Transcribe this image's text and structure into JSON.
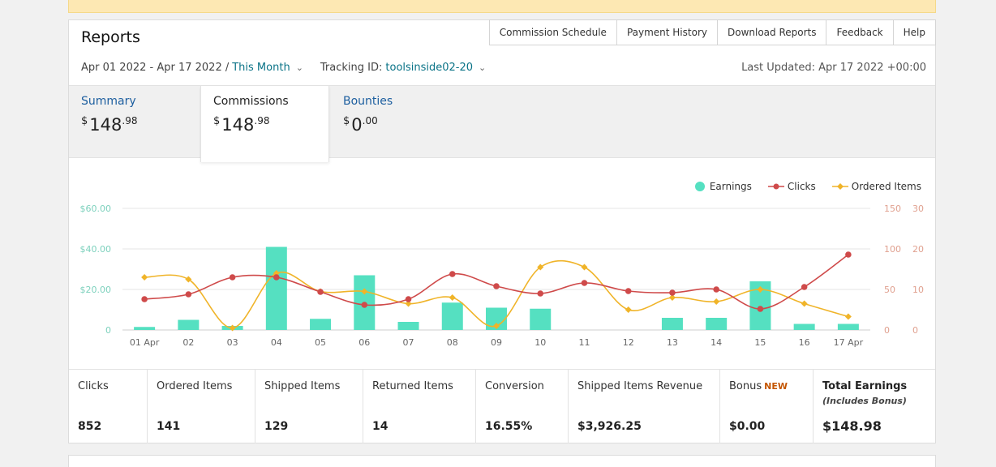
{
  "header": {
    "title": "Reports",
    "nav": [
      "Commission Schedule",
      "Payment History",
      "Download Reports",
      "Feedback",
      "Help"
    ],
    "date_range": "Apr 01 2022 - Apr 17 2022 /",
    "period": "This Month",
    "tracking_label": "Tracking ID:",
    "tracking_id": "toolsinside02-20",
    "last_updated": "Last Updated: Apr 17 2022 +00:00"
  },
  "tabs": [
    {
      "label": "Summary",
      "currency": "$",
      "whole": "148",
      "cents": ".98"
    },
    {
      "label": "Commissions",
      "currency": "$",
      "whole": "148",
      "cents": ".98"
    },
    {
      "label": "Bounties",
      "currency": "$",
      "whole": "0",
      "cents": ".00"
    }
  ],
  "legend": [
    "Earnings",
    "Clicks",
    "Ordered Items"
  ],
  "stats": [
    {
      "label": "Clicks",
      "value": "852"
    },
    {
      "label": "Ordered Items",
      "value": "141"
    },
    {
      "label": "Shipped Items",
      "value": "129"
    },
    {
      "label": "Returned Items",
      "value": "14"
    },
    {
      "label": "Conversion",
      "value": "16.55%"
    },
    {
      "label": "Shipped Items Revenue",
      "value": "$3,926.25"
    },
    {
      "label": "Bonus",
      "badge": "NEW",
      "value": "$0.00"
    },
    {
      "label": "Total Earnings",
      "sub": "(Includes Bonus)",
      "value": "$148.98"
    }
  ],
  "colors": {
    "earnings": "#55e0c1",
    "clicks": "#cf4a4a",
    "ordered": "#f0b429",
    "link": "#0a7387"
  },
  "chart_data": {
    "type": "bar",
    "categories": [
      "01 Apr",
      "02",
      "03",
      "04",
      "05",
      "06",
      "07",
      "08",
      "09",
      "10",
      "11",
      "12",
      "13",
      "14",
      "15",
      "16",
      "17 Apr"
    ],
    "y_left_ticks": [
      "$60.00",
      "$40.00",
      "$20.00",
      "0"
    ],
    "y_right1_ticks": [
      "150",
      "100",
      "50",
      "0"
    ],
    "y_right2_ticks": [
      "30",
      "20",
      "10",
      "0"
    ],
    "ylim_left": [
      0,
      60
    ],
    "ylim_clicks": [
      0,
      150
    ],
    "ylim_ordered": [
      0,
      30
    ],
    "series": [
      {
        "name": "Earnings",
        "type": "bar",
        "values": [
          1.5,
          5,
          2,
          41,
          5.5,
          27,
          4,
          13.5,
          11,
          10.5,
          0,
          0,
          6,
          6,
          24,
          3,
          3
        ]
      },
      {
        "name": "Clicks",
        "type": "line",
        "values": [
          38,
          44,
          65,
          65,
          47,
          31,
          38,
          69,
          54,
          45,
          58,
          48,
          46,
          50,
          26,
          53,
          93
        ]
      },
      {
        "name": "Ordered Items",
        "type": "line",
        "values": [
          13,
          12.5,
          0.5,
          14,
          9.5,
          9.5,
          6.5,
          8,
          1,
          15.5,
          15.5,
          5,
          8,
          7,
          10,
          6.5,
          3.3
        ]
      }
    ],
    "grid": true
  }
}
